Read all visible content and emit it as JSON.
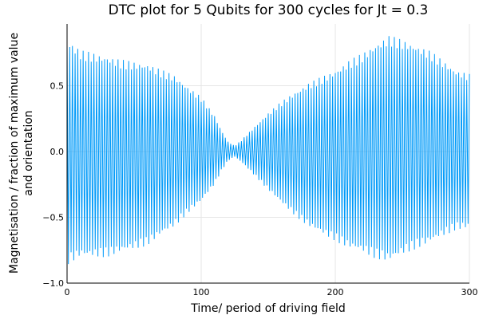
{
  "chart_data": {
    "type": "line",
    "title": "DTC plot for 5 Qubits for 300 cycles for Jt = 0.3",
    "xlabel": "Time/ period of driving field",
    "ylabel_line1": "Magnetisation / fraction of maximum value",
    "ylabel_line2": "and orientation",
    "xlim": [
      0,
      300
    ],
    "ylim": [
      -1.0,
      0.97
    ],
    "x_ticks": [
      0,
      100,
      200,
      300
    ],
    "x_tick_labels": [
      "0",
      "100",
      "200",
      "300"
    ],
    "y_ticks": [
      -1.0,
      -0.5,
      0.0,
      0.5
    ],
    "y_tick_labels": [
      "−1.0",
      "−0.5",
      "0.0",
      "0.5"
    ],
    "grid": true,
    "legend": "none",
    "series_color": "#009af9",
    "envelope": {
      "x": [
        0,
        10,
        20,
        30,
        40,
        50,
        60,
        70,
        80,
        90,
        100,
        110,
        115,
        120,
        125,
        130,
        140,
        150,
        160,
        170,
        180,
        190,
        200,
        210,
        220,
        230,
        240,
        250,
        260,
        270,
        280,
        290,
        300
      ],
      "amplitude": [
        0.82,
        0.75,
        0.74,
        0.73,
        0.7,
        0.68,
        0.66,
        0.6,
        0.55,
        0.46,
        0.38,
        0.25,
        0.15,
        0.07,
        0.04,
        0.08,
        0.18,
        0.28,
        0.37,
        0.45,
        0.52,
        0.57,
        0.62,
        0.68,
        0.72,
        0.78,
        0.82,
        0.78,
        0.74,
        0.7,
        0.64,
        0.58,
        0.56
      ]
    }
  }
}
